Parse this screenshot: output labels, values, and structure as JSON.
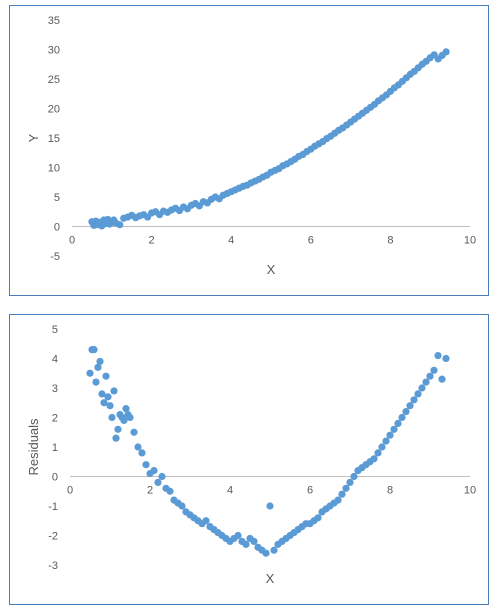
{
  "colors": {
    "point": "#5b9bd5",
    "axis": "#bfbfbf",
    "text": "#595959",
    "border": "#4a7ebb"
  },
  "chart_data": [
    {
      "type": "scatter",
      "title": "",
      "xlabel": "X",
      "ylabel": "Y",
      "xlim": [
        0,
        10
      ],
      "ylim": [
        -5,
        35
      ],
      "xticks": [
        "0",
        "2",
        "4",
        "6",
        "8",
        "10"
      ],
      "yticks": [
        "-5",
        "0",
        "5",
        "10",
        "15",
        "20",
        "25",
        "30",
        "35"
      ],
      "grid": false,
      "series": [
        {
          "x": [
            0.5,
            0.55,
            0.6,
            0.65,
            0.7,
            0.75,
            0.8,
            0.85,
            0.9,
            0.95,
            1.0,
            1.05,
            1.1,
            1.2,
            1.3,
            1.4,
            1.5,
            1.6,
            1.7,
            1.8,
            1.9,
            2.0,
            2.1,
            2.2,
            2.3,
            2.4,
            2.5,
            2.6,
            2.7,
            2.8,
            2.9,
            3.0,
            3.1,
            3.2,
            3.3,
            3.4,
            3.5,
            3.6,
            3.7,
            3.8,
            3.9,
            4.0,
            4.1,
            4.2,
            4.3,
            4.4,
            4.5,
            4.6,
            4.7,
            4.8,
            4.9,
            5.0,
            5.1,
            5.2,
            5.3,
            5.4,
            5.5,
            5.6,
            5.7,
            5.8,
            5.9,
            6.0,
            6.1,
            6.2,
            6.3,
            6.4,
            6.5,
            6.6,
            6.7,
            6.8,
            6.9,
            7.0,
            7.1,
            7.2,
            7.3,
            7.4,
            7.5,
            7.6,
            7.7,
            7.8,
            7.9,
            8.0,
            8.1,
            8.2,
            8.3,
            8.4,
            8.5,
            8.6,
            8.7,
            8.8,
            8.9,
            9.0,
            9.1,
            9.2,
            9.3,
            9.4
          ],
          "y": [
            0.8,
            0.2,
            0.9,
            0.3,
            0.7,
            0.1,
            1.1,
            0.5,
            1.2,
            0.4,
            0.9,
            1.1,
            0.6,
            0.3,
            1.4,
            1.6,
            1.9,
            1.5,
            1.8,
            2.0,
            1.6,
            2.3,
            2.5,
            2.0,
            2.6,
            2.4,
            2.8,
            3.1,
            2.7,
            3.3,
            3.0,
            3.6,
            3.9,
            3.5,
            4.2,
            4.0,
            4.6,
            5.0,
            4.7,
            5.3,
            5.6,
            5.9,
            6.2,
            6.5,
            6.8,
            7.0,
            7.4,
            7.7,
            8.0,
            8.4,
            8.7,
            9.2,
            9.5,
            9.8,
            10.3,
            10.6,
            11.0,
            11.4,
            11.9,
            12.2,
            12.7,
            13.1,
            13.6,
            14.0,
            14.4,
            14.9,
            15.3,
            15.8,
            16.3,
            16.7,
            17.2,
            17.7,
            18.2,
            18.7,
            19.2,
            19.7,
            20.2,
            20.7,
            21.3,
            21.8,
            22.3,
            22.9,
            23.5,
            24.0,
            24.6,
            25.2,
            25.8,
            26.3,
            26.9,
            27.5,
            28.0,
            28.6,
            29.1,
            28.4,
            29.0,
            29.6
          ]
        }
      ]
    },
    {
      "type": "scatter",
      "title": "",
      "xlabel": "X",
      "ylabel": "Residuals",
      "xlim": [
        0,
        10
      ],
      "ylim": [
        -3,
        5
      ],
      "xticks": [
        "0",
        "2",
        "4",
        "6",
        "8",
        "10"
      ],
      "yticks": [
        "-3",
        "-2",
        "-1",
        "0",
        "1",
        "2",
        "3",
        "4",
        "5"
      ],
      "grid": false,
      "series": [
        {
          "x": [
            0.5,
            0.55,
            0.6,
            0.65,
            0.7,
            0.75,
            0.8,
            0.85,
            0.9,
            0.95,
            1.0,
            1.05,
            1.1,
            1.15,
            1.2,
            1.25,
            1.3,
            1.35,
            1.4,
            1.45,
            1.5,
            1.6,
            1.7,
            1.8,
            1.9,
            2.0,
            2.1,
            2.2,
            2.3,
            2.4,
            2.5,
            2.6,
            2.7,
            2.8,
            2.9,
            3.0,
            3.1,
            3.2,
            3.3,
            3.4,
            3.5,
            3.6,
            3.7,
            3.8,
            3.9,
            4.0,
            4.1,
            4.2,
            4.3,
            4.4,
            4.5,
            4.6,
            4.7,
            4.8,
            4.9,
            5.0,
            5.1,
            5.2,
            5.3,
            5.4,
            5.5,
            5.6,
            5.7,
            5.8,
            5.9,
            6.0,
            6.1,
            6.2,
            6.3,
            6.4,
            6.5,
            6.6,
            6.7,
            6.8,
            6.9,
            7.0,
            7.1,
            7.2,
            7.3,
            7.4,
            7.5,
            7.6,
            7.7,
            7.8,
            7.9,
            8.0,
            8.1,
            8.2,
            8.3,
            8.4,
            8.5,
            8.6,
            8.7,
            8.8,
            8.9,
            9.0,
            9.1,
            9.2,
            9.3,
            9.4
          ],
          "y": [
            3.5,
            4.3,
            4.3,
            3.2,
            3.7,
            3.9,
            2.8,
            2.5,
            3.4,
            2.7,
            2.4,
            2.0,
            2.9,
            1.3,
            1.6,
            2.1,
            2.0,
            1.9,
            2.3,
            2.1,
            2.0,
            1.5,
            1.0,
            0.8,
            0.4,
            0.1,
            0.2,
            -0.2,
            0.0,
            -0.4,
            -0.5,
            -0.8,
            -0.9,
            -1.0,
            -1.2,
            -1.3,
            -1.4,
            -1.5,
            -1.6,
            -1.5,
            -1.7,
            -1.8,
            -1.9,
            -2.0,
            -2.1,
            -2.2,
            -2.1,
            -2.0,
            -2.2,
            -2.3,
            -2.1,
            -2.2,
            -2.4,
            -2.5,
            -2.6,
            -1.0,
            -2.5,
            -2.3,
            -2.2,
            -2.1,
            -2.0,
            -1.9,
            -1.8,
            -1.7,
            -1.6,
            -1.6,
            -1.5,
            -1.4,
            -1.2,
            -1.1,
            -1.0,
            -0.9,
            -0.8,
            -0.6,
            -0.4,
            -0.2,
            0.0,
            0.2,
            0.3,
            0.4,
            0.5,
            0.6,
            0.8,
            1.0,
            1.2,
            1.4,
            1.6,
            1.8,
            2.0,
            2.2,
            2.4,
            2.6,
            2.8,
            3.0,
            3.2,
            3.4,
            3.6,
            4.1,
            3.3,
            4.0
          ]
        }
      ]
    }
  ]
}
